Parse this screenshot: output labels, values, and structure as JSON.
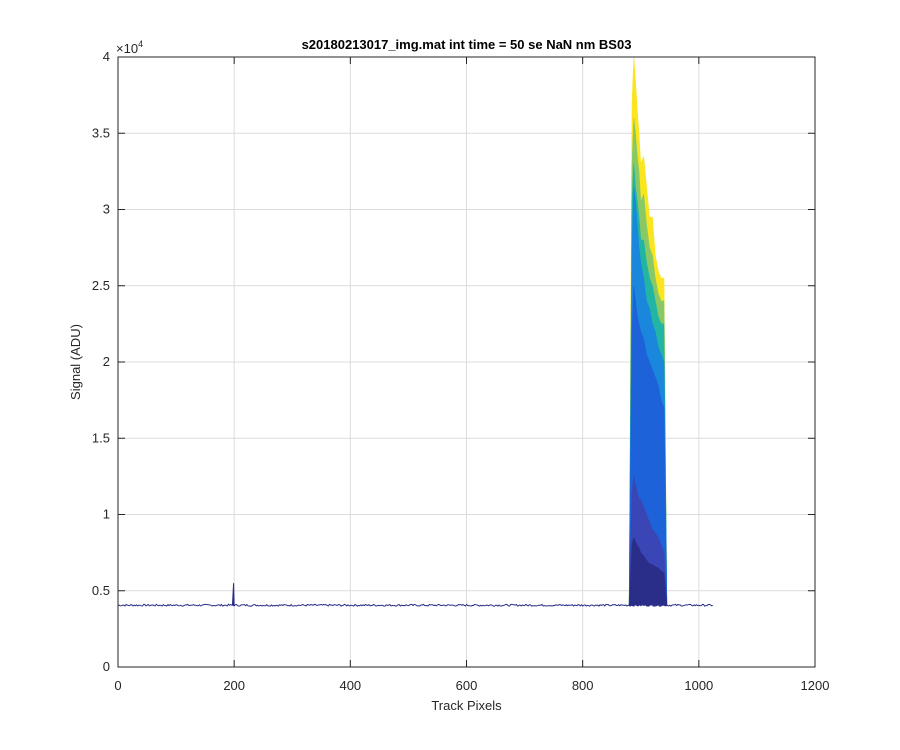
{
  "chart_data": {
    "type": "area",
    "title": "s20180213017_img.mat int time = 50 se  NaN nm BS03",
    "xlabel": "Track Pixels",
    "ylabel": "Signal (ADU)",
    "xlim": [
      0,
      1200
    ],
    "ylim": [
      0,
      40000
    ],
    "y_exponent_label": "×10",
    "y_exponent_power": "4",
    "x_ticks": [
      0,
      200,
      400,
      600,
      800,
      1000,
      1200
    ],
    "x_tick_labels": [
      "0",
      "200",
      "400",
      "600",
      "800",
      "1000",
      "1200"
    ],
    "y_ticks": [
      0,
      5000,
      10000,
      15000,
      20000,
      25000,
      30000,
      35000,
      40000
    ],
    "y_tick_labels": [
      "0",
      "0.5",
      "1",
      "1.5",
      "2",
      "2.5",
      "3",
      "3.5",
      "4"
    ],
    "grid": true,
    "baseline": 4050,
    "x_max_data": 1024,
    "spikes": [
      {
        "x": 199,
        "y": 5500
      }
    ],
    "peak_region": {
      "x_start": 880,
      "x_end": 945
    },
    "series": [
      {
        "color": "#fbe51f",
        "x": [
          885,
          888,
          891,
          894,
          897,
          900,
          905,
          910,
          915,
          920,
          925,
          930,
          935,
          940
        ],
        "values": [
          37000,
          40000,
          38500,
          36500,
          35000,
          33000,
          33500,
          31500,
          29500,
          29500,
          27000,
          26000,
          25500,
          25500
        ]
      },
      {
        "color": "#88c966",
        "x": [
          885,
          888,
          891,
          894,
          897,
          900,
          905,
          910,
          915,
          920,
          925,
          930,
          935,
          940
        ],
        "values": [
          33000,
          36000,
          35000,
          33500,
          32500,
          30500,
          31000,
          29000,
          27500,
          27000,
          25500,
          24500,
          24000,
          24000
        ]
      },
      {
        "color": "#22b5a5",
        "x": [
          885,
          888,
          891,
          894,
          897,
          900,
          905,
          910,
          915,
          920,
          925,
          930,
          935,
          940
        ],
        "values": [
          30500,
          33000,
          31500,
          30500,
          29500,
          28000,
          28000,
          26500,
          25500,
          25000,
          24000,
          23000,
          22500,
          22500
        ]
      },
      {
        "color": "#1a86dc",
        "x": [
          885,
          888,
          891,
          894,
          897,
          900,
          905,
          910,
          915,
          920,
          925,
          930,
          935,
          940
        ],
        "values": [
          27500,
          31500,
          30500,
          29000,
          27500,
          26500,
          25500,
          24000,
          23500,
          22500,
          22000,
          21000,
          20500,
          20000
        ]
      },
      {
        "color": "#1d62d8",
        "x": [
          885,
          888,
          891,
          894,
          897,
          900,
          905,
          910,
          915,
          920,
          925,
          930,
          935,
          940
        ],
        "values": [
          22000,
          25000,
          24000,
          23000,
          22500,
          22000,
          21500,
          20500,
          20000,
          19500,
          19000,
          18500,
          17500,
          17000
        ]
      },
      {
        "color": "#3a46b5",
        "x": [
          885,
          888,
          891,
          894,
          897,
          900,
          905,
          910,
          915,
          920,
          925,
          930,
          935,
          940
        ],
        "values": [
          11500,
          12500,
          12000,
          11500,
          11000,
          11000,
          10500,
          10000,
          9500,
          9000,
          8800,
          8500,
          8000,
          7500
        ]
      },
      {
        "color": "#2a2e88",
        "x": [
          885,
          888,
          891,
          894,
          897,
          900,
          905,
          910,
          915,
          920,
          925,
          930,
          935,
          940
        ],
        "values": [
          8000,
          8500,
          8200,
          8000,
          7800,
          7500,
          7300,
          7000,
          6800,
          6700,
          6600,
          6500,
          6300,
          6200
        ]
      }
    ]
  }
}
